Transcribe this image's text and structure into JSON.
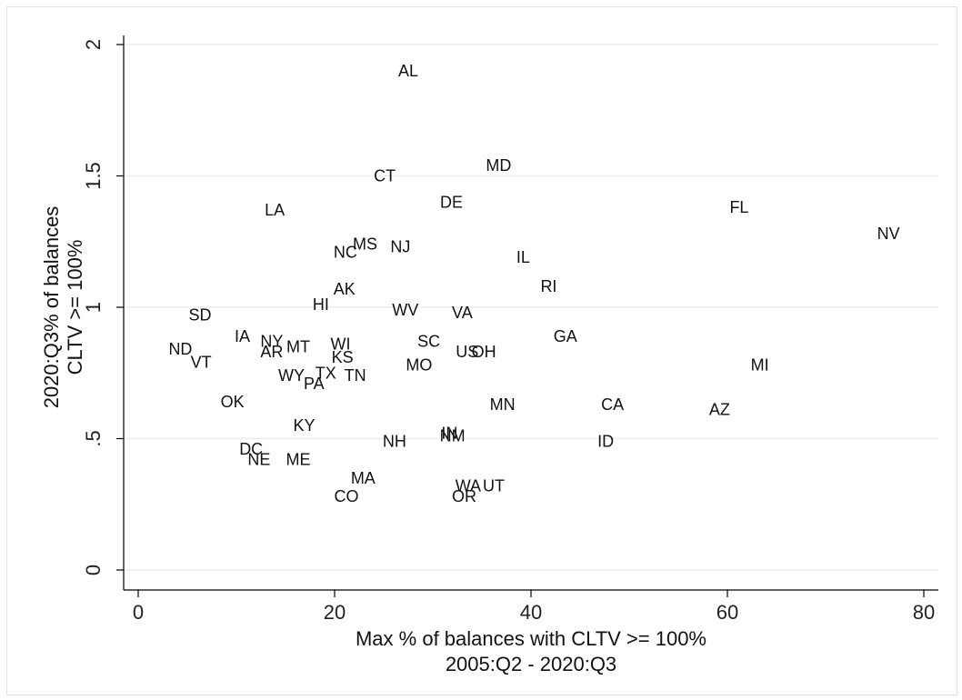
{
  "chart_data": {
    "type": "scatter",
    "marker": "label-only",
    "xlabel": [
      "Max % of balances with CLTV >= 100%",
      "2005:Q2 - 2020:Q3"
    ],
    "ylabel": [
      "2020:Q3% of balances",
      "CLTV >= 100%"
    ],
    "xlim": [
      0,
      80
    ],
    "ylim": [
      0,
      2
    ],
    "xticks": [
      "0",
      "20",
      "40",
      "60",
      "80"
    ],
    "yticks": [
      "0",
      ".5",
      "1",
      "1.5",
      "2"
    ],
    "grid": "horizontal",
    "points": [
      {
        "label": "AL",
        "x": 27.5,
        "y": 1.9
      },
      {
        "label": "MD",
        "x": 36.7,
        "y": 1.54
      },
      {
        "label": "CT",
        "x": 25.1,
        "y": 1.5
      },
      {
        "label": "DE",
        "x": 31.9,
        "y": 1.4
      },
      {
        "label": "FL",
        "x": 61.2,
        "y": 1.38
      },
      {
        "label": "LA",
        "x": 13.9,
        "y": 1.37
      },
      {
        "label": "NV",
        "x": 76.4,
        "y": 1.28
      },
      {
        "label": "NJ",
        "x": 26.7,
        "y": 1.23
      },
      {
        "label": "MS",
        "x": 23.1,
        "y": 1.24
      },
      {
        "label": "NC",
        "x": 21.1,
        "y": 1.21
      },
      {
        "label": "IL",
        "x": 39.2,
        "y": 1.19
      },
      {
        "label": "RI",
        "x": 41.8,
        "y": 1.08
      },
      {
        "label": "AK",
        "x": 21.0,
        "y": 1.07
      },
      {
        "label": "HI",
        "x": 18.6,
        "y": 1.01
      },
      {
        "label": "WV",
        "x": 27.2,
        "y": 0.99
      },
      {
        "label": "VA",
        "x": 33.0,
        "y": 0.98
      },
      {
        "label": "SD",
        "x": 6.3,
        "y": 0.97
      },
      {
        "label": "GA",
        "x": 43.5,
        "y": 0.89
      },
      {
        "label": "IA",
        "x": 10.6,
        "y": 0.89
      },
      {
        "label": "NY",
        "x": 13.6,
        "y": 0.87
      },
      {
        "label": "WI",
        "x": 20.6,
        "y": 0.86
      },
      {
        "label": "SC",
        "x": 29.6,
        "y": 0.87
      },
      {
        "label": "MT",
        "x": 16.3,
        "y": 0.85
      },
      {
        "label": "ND",
        "x": 4.3,
        "y": 0.84
      },
      {
        "label": "AR",
        "x": 13.6,
        "y": 0.83
      },
      {
        "label": "US",
        "x": 33.5,
        "y": 0.83
      },
      {
        "label": "OH",
        "x": 35.2,
        "y": 0.83
      },
      {
        "label": "KS",
        "x": 20.8,
        "y": 0.81
      },
      {
        "label": "VT",
        "x": 6.4,
        "y": 0.79
      },
      {
        "label": "MO",
        "x": 28.6,
        "y": 0.78
      },
      {
        "label": "MI",
        "x": 63.3,
        "y": 0.78
      },
      {
        "label": "TX",
        "x": 19.1,
        "y": 0.75
      },
      {
        "label": "WY",
        "x": 15.6,
        "y": 0.74
      },
      {
        "label": "TN",
        "x": 22.1,
        "y": 0.74
      },
      {
        "label": "PA",
        "x": 17.9,
        "y": 0.71
      },
      {
        "label": "OK",
        "x": 9.6,
        "y": 0.64
      },
      {
        "label": "MN",
        "x": 37.1,
        "y": 0.63
      },
      {
        "label": "CA",
        "x": 48.3,
        "y": 0.63
      },
      {
        "label": "AZ",
        "x": 59.2,
        "y": 0.61
      },
      {
        "label": "KY",
        "x": 16.9,
        "y": 0.55
      },
      {
        "label": "IN",
        "x": 31.7,
        "y": 0.52
      },
      {
        "label": "NM",
        "x": 32.0,
        "y": 0.51
      },
      {
        "label": "NH",
        "x": 26.1,
        "y": 0.49
      },
      {
        "label": "ID",
        "x": 47.6,
        "y": 0.49
      },
      {
        "label": "DC",
        "x": 11.5,
        "y": 0.46
      },
      {
        "label": "NE",
        "x": 12.3,
        "y": 0.42
      },
      {
        "label": "ME",
        "x": 16.3,
        "y": 0.42
      },
      {
        "label": "MA",
        "x": 22.9,
        "y": 0.35
      },
      {
        "label": "UT",
        "x": 36.2,
        "y": 0.32
      },
      {
        "label": "WA",
        "x": 33.6,
        "y": 0.32
      },
      {
        "label": "CO",
        "x": 21.2,
        "y": 0.28
      },
      {
        "label": "OR",
        "x": 33.2,
        "y": 0.28
      }
    ]
  }
}
